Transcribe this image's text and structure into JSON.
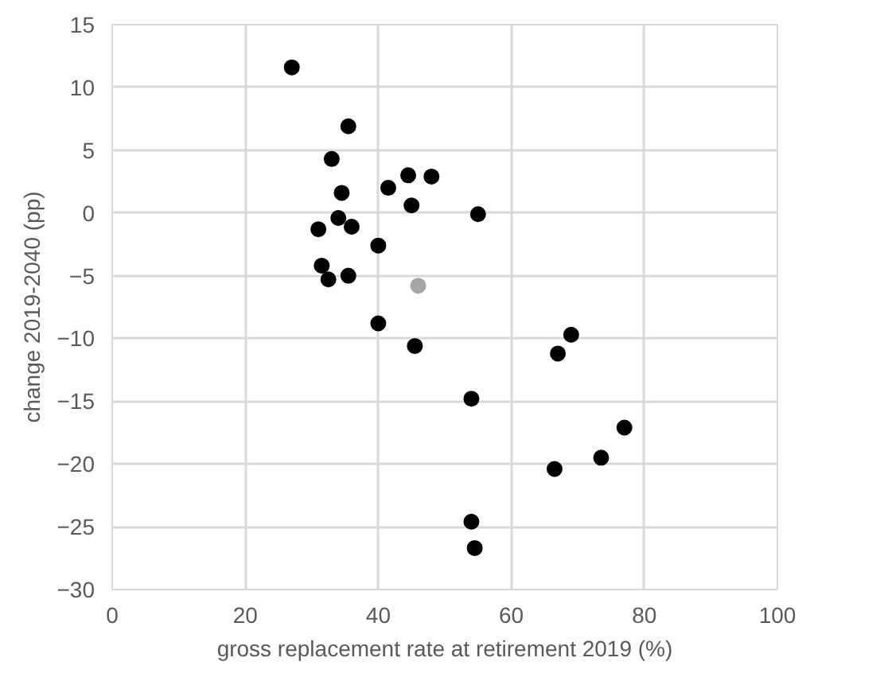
{
  "chart_data": {
    "type": "scatter",
    "xlabel": "gross replacement rate at retirement 2019 (%)",
    "ylabel": "change 2019-2040 (pp)",
    "x": [
      27,
      35.5,
      33,
      44.5,
      48,
      41.5,
      34.5,
      45,
      55,
      34,
      31,
      36,
      40,
      31.5,
      32.5,
      35.5,
      46,
      40,
      45.5,
      69,
      67,
      54,
      77,
      73.5,
      66.5,
      54,
      54.5
    ],
    "values": [
      11.6,
      6.9,
      4.3,
      3.0,
      2.9,
      2.0,
      1.6,
      0.6,
      -0.1,
      -0.4,
      -1.3,
      -1.1,
      -2.6,
      -4.2,
      -5.3,
      -5.0,
      -5.8,
      -8.8,
      -10.6,
      -9.7,
      -11.2,
      -14.8,
      -17.1,
      -19.5,
      -20.4,
      -24.6,
      -26.7
    ],
    "colors": [
      "#000000",
      "#000000",
      "#000000",
      "#000000",
      "#000000",
      "#000000",
      "#000000",
      "#000000",
      "#000000",
      "#000000",
      "#000000",
      "#000000",
      "#000000",
      "#000000",
      "#000000",
      "#000000",
      "#a6a6a6",
      "#000000",
      "#000000",
      "#000000",
      "#000000",
      "#000000",
      "#000000",
      "#000000",
      "#000000",
      "#000000",
      "#000000"
    ],
    "xlim": [
      0,
      100
    ],
    "xticks": [
      0,
      20,
      40,
      60,
      80,
      100
    ],
    "ylim": [
      -30,
      15
    ],
    "yticks": [
      -30,
      -25,
      -20,
      -15,
      -10,
      -5,
      0,
      5,
      10,
      15
    ],
    "grid": true,
    "marker": "circle"
  }
}
